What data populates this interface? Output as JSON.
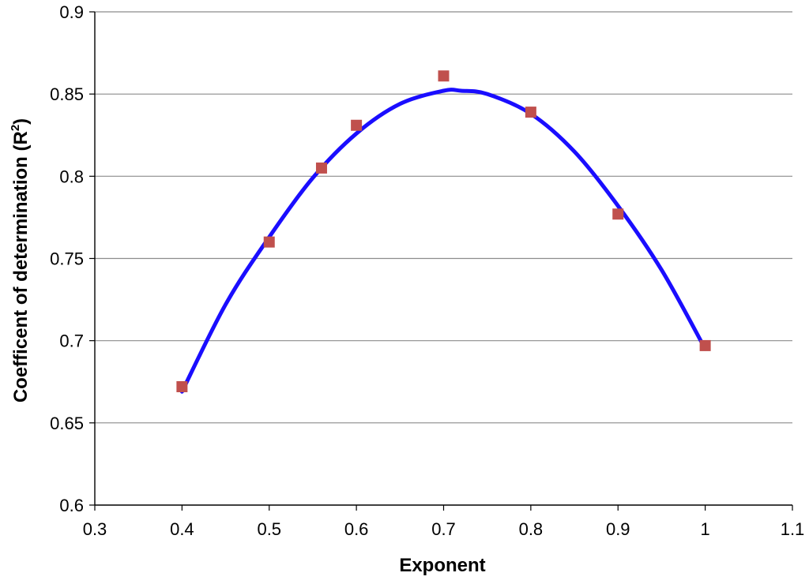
{
  "chart_data": {
    "type": "scatter",
    "title": "",
    "xlabel": "Exponent",
    "ylabel_parts": {
      "main": "Coefficent of determination (R",
      "sup": "2",
      "close": ")"
    },
    "xlim": [
      0.3,
      1.1
    ],
    "ylim": [
      0.6,
      0.9
    ],
    "x_ticks": [
      {
        "value": 0.3,
        "label": "0.3"
      },
      {
        "value": 0.4,
        "label": "0.4"
      },
      {
        "value": 0.5,
        "label": "0.5"
      },
      {
        "value": 0.6,
        "label": "0.6"
      },
      {
        "value": 0.7,
        "label": "0.7"
      },
      {
        "value": 0.8,
        "label": "0.8"
      },
      {
        "value": 0.9,
        "label": "0.9"
      },
      {
        "value": 1.0,
        "label": "1"
      },
      {
        "value": 1.1,
        "label": "1.1"
      }
    ],
    "y_ticks": [
      {
        "value": 0.6,
        "label": "0.6"
      },
      {
        "value": 0.65,
        "label": "0.65"
      },
      {
        "value": 0.7,
        "label": "0.7"
      },
      {
        "value": 0.75,
        "label": "0.75"
      },
      {
        "value": 0.8,
        "label": "0.8"
      },
      {
        "value": 0.85,
        "label": "0.85"
      },
      {
        "value": 0.9,
        "label": "0.9"
      }
    ],
    "grid": "horizontal",
    "legend": "none",
    "series": [
      {
        "kind": "markers",
        "marker": "square",
        "color": "#c0504d",
        "x": [
          0.4,
          0.5,
          0.56,
          0.6,
          0.7,
          0.8,
          0.9,
          1.0
        ],
        "y": [
          0.672,
          0.76,
          0.805,
          0.831,
          0.861,
          0.839,
          0.777,
          0.697
        ]
      },
      {
        "kind": "trendline",
        "fit": "polynomial-order-2",
        "color": "#1a0dff",
        "x": [
          0.4,
          0.45,
          0.5,
          0.55,
          0.6,
          0.65,
          0.7,
          0.72,
          0.75,
          0.8,
          0.85,
          0.9,
          0.95,
          1.0
        ],
        "y": [
          0.669,
          0.722,
          0.763,
          0.799,
          0.826,
          0.844,
          0.852,
          0.852,
          0.85,
          0.838,
          0.815,
          0.782,
          0.743,
          0.695
        ]
      }
    ]
  }
}
